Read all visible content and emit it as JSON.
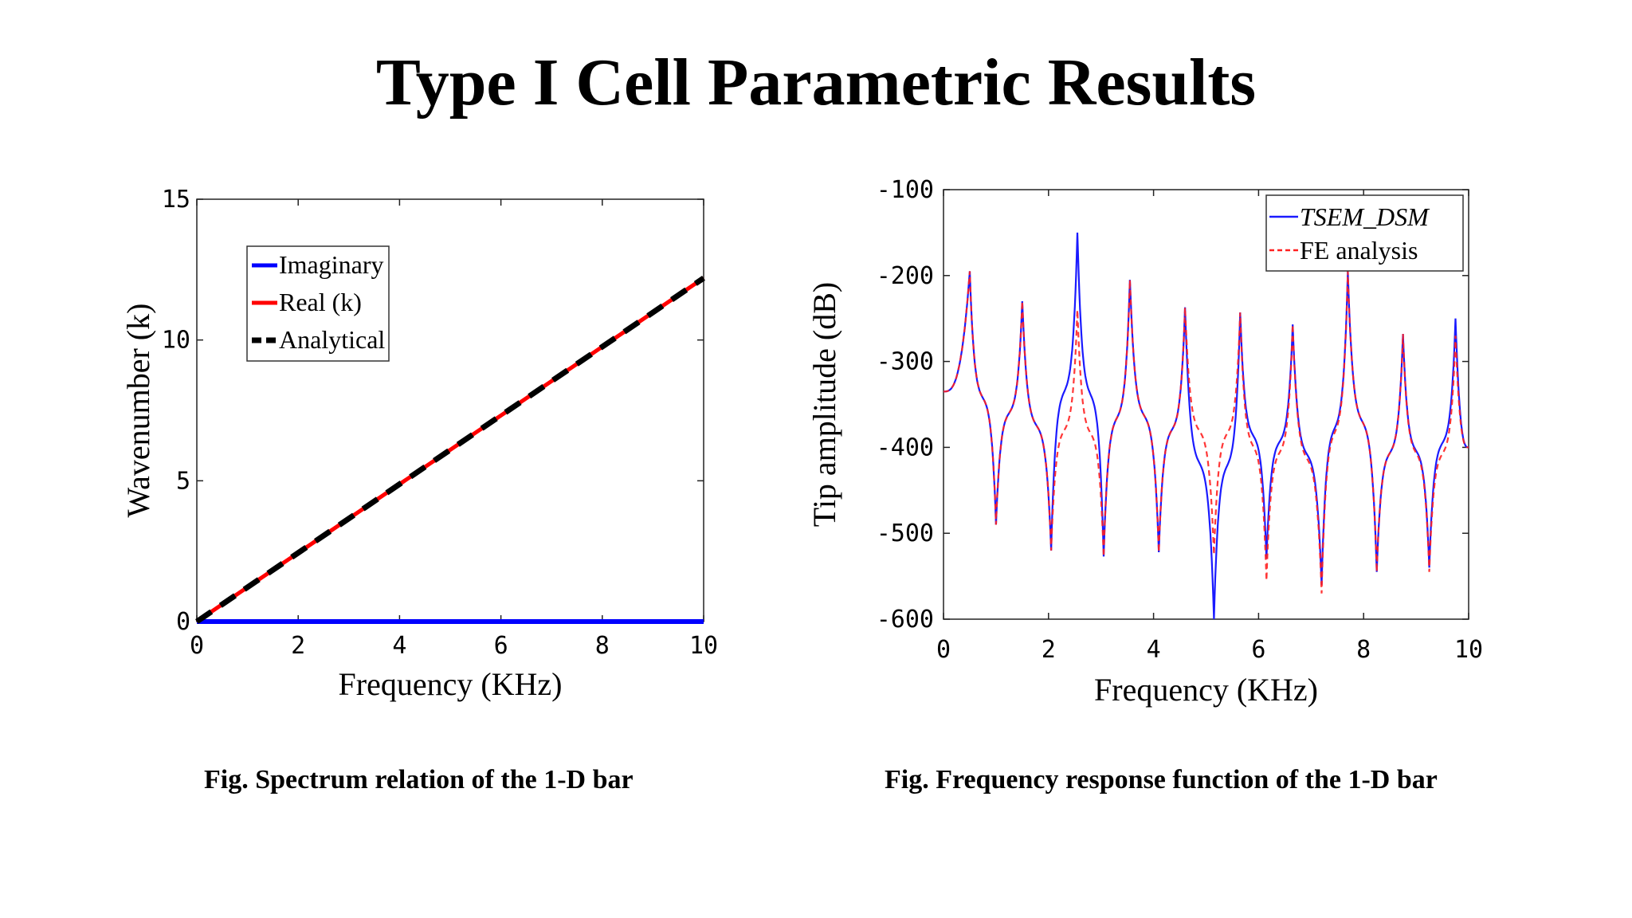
{
  "slide": {
    "title": "Type I Cell Parametric Results",
    "caption_left": "Fig.  Spectrum relation of the 1-D bar",
    "caption_right": "Fig.  Frequency response function of the 1-D bar"
  },
  "chart_data": [
    {
      "type": "line",
      "title": "",
      "xlabel": "Frequency (KHz)",
      "ylabel": "Wavenumber (k)",
      "xlim": [
        0,
        10
      ],
      "ylim": [
        0,
        15
      ],
      "xticks": [
        0,
        2,
        4,
        6,
        8,
        10
      ],
      "yticks": [
        0,
        5,
        10,
        15
      ],
      "grid": false,
      "legend_position": "top-left",
      "series": [
        {
          "name": "Imaginary",
          "color": "#0000ff",
          "style": "solid",
          "x": [
            0,
            10
          ],
          "y": [
            0,
            0
          ]
        },
        {
          "name": "Real (k)",
          "color": "#ff0000",
          "style": "solid",
          "x": [
            0,
            10
          ],
          "y": [
            0,
            12.2
          ]
        },
        {
          "name": "Analytical",
          "color": "#000000",
          "style": "dashed",
          "x": [
            0,
            10
          ],
          "y": [
            0,
            12.2
          ]
        }
      ]
    },
    {
      "type": "line",
      "title": "",
      "xlabel": "Frequency (KHz)",
      "ylabel": "Tip amplitude (dB)",
      "xlim": [
        0,
        10
      ],
      "ylim": [
        -600,
        -100
      ],
      "xticks": [
        0,
        2,
        4,
        6,
        8,
        10
      ],
      "yticks": [
        -600,
        -500,
        -400,
        -300,
        -200,
        -100
      ],
      "grid": false,
      "legend_position": "top-right",
      "start_value": -335,
      "end_value": -400,
      "resonances": [
        {
          "x": 0.5,
          "peak": -195,
          "fe_peak": -195
        },
        {
          "x": 1.5,
          "peak": -230,
          "fe_peak": -230
        },
        {
          "x": 2.55,
          "peak": -150,
          "fe_peak": -240
        },
        {
          "x": 3.55,
          "peak": -205,
          "fe_peak": -205
        },
        {
          "x": 4.6,
          "peak": -237,
          "fe_peak": -237
        },
        {
          "x": 5.65,
          "peak": -243,
          "fe_peak": -243
        },
        {
          "x": 6.65,
          "peak": -257,
          "fe_peak": -257
        },
        {
          "x": 7.7,
          "peak": -195,
          "fe_peak": -195
        },
        {
          "x": 8.75,
          "peak": -268,
          "fe_peak": -268
        },
        {
          "x": 9.75,
          "peak": -250,
          "fe_peak": -270
        }
      ],
      "antiresonances": [
        {
          "x": 1.0,
          "dip": -490,
          "fe_dip": -490
        },
        {
          "x": 2.05,
          "dip": -520,
          "fe_dip": -520
        },
        {
          "x": 3.05,
          "dip": -527,
          "fe_dip": -527
        },
        {
          "x": 4.1,
          "dip": -522,
          "fe_dip": -522
        },
        {
          "x": 5.15,
          "dip": -600,
          "fe_dip": -525
        },
        {
          "x": 6.15,
          "dip": -530,
          "fe_dip": -555
        },
        {
          "x": 7.2,
          "dip": -560,
          "fe_dip": -570
        },
        {
          "x": 8.25,
          "dip": -545,
          "fe_dip": -545
        },
        {
          "x": 9.25,
          "dip": -540,
          "fe_dip": -545
        }
      ],
      "series": [
        {
          "name": "TSEM_DSM",
          "color": "#1a1aff",
          "style": "solid"
        },
        {
          "name": "FE analysis",
          "color": "#ff2020",
          "style": "dashed"
        }
      ]
    }
  ]
}
